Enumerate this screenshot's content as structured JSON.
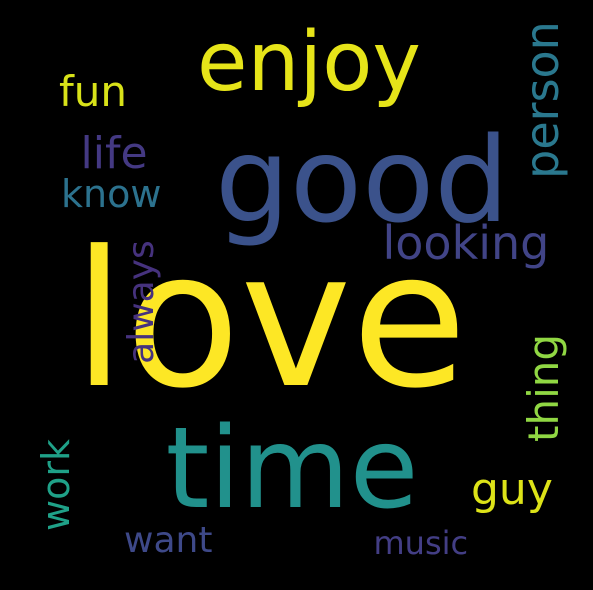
{
  "background": "#000000",
  "words": [
    {
      "id": "love",
      "text": "love",
      "color": "#fde725"
    },
    {
      "id": "time",
      "text": "time",
      "color": "#21918c"
    },
    {
      "id": "good",
      "text": "good",
      "color": "#3b528b"
    },
    {
      "id": "enjoy",
      "text": "enjoy",
      "color": "#e6e419"
    },
    {
      "id": "looking",
      "text": "looking",
      "color": "#414487"
    },
    {
      "id": "person",
      "text": "person",
      "color": "#2a788e"
    },
    {
      "id": "always",
      "text": "always",
      "color": "#46327e"
    },
    {
      "id": "thing",
      "text": "thing",
      "color": "#90d743"
    },
    {
      "id": "fun",
      "text": "fun",
      "color": "#d8e219"
    },
    {
      "id": "life",
      "text": "life",
      "color": "#443983"
    },
    {
      "id": "know",
      "text": "know",
      "color": "#2c728e"
    },
    {
      "id": "work",
      "text": "work",
      "color": "#1fa188"
    },
    {
      "id": "guy",
      "text": "guy",
      "color": "#dde318"
    },
    {
      "id": "want",
      "text": "want",
      "color": "#3e4989"
    },
    {
      "id": "music",
      "text": "music",
      "color": "#433e85"
    }
  ]
}
